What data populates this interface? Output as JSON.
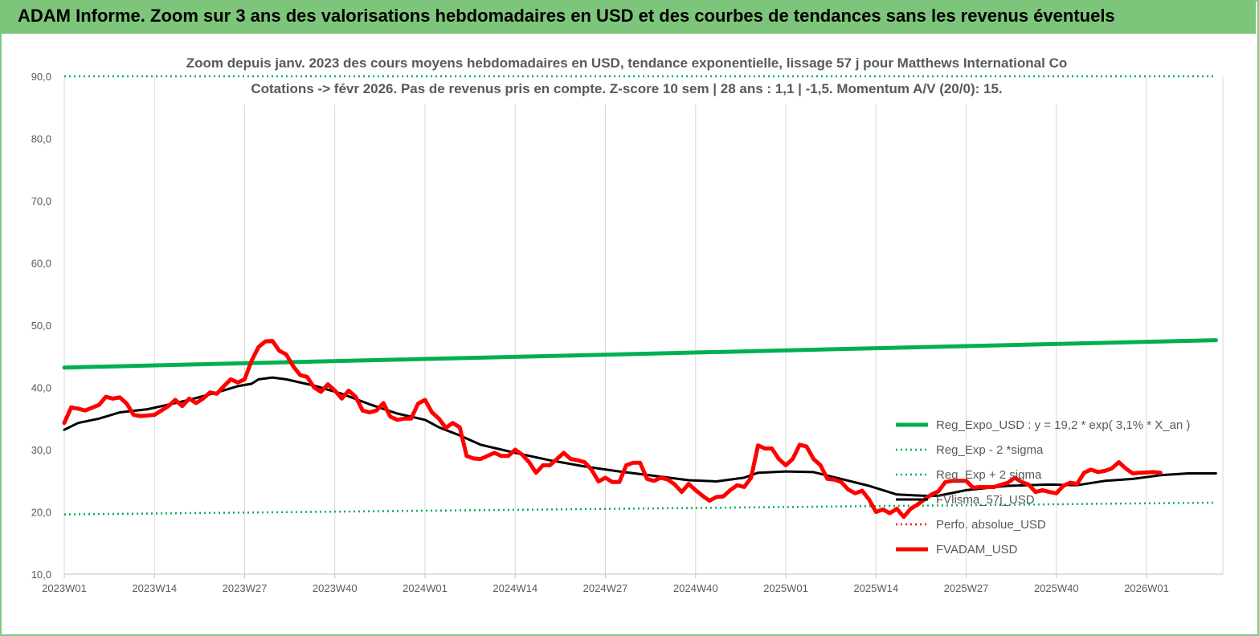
{
  "banner": {
    "title": "ADAM Informe. Zoom sur 3 ans des valorisations hebdomadaires en USD et des courbes de tendances sans les revenus éventuels"
  },
  "colors": {
    "banner_bg": "#7dc57a",
    "reg_expo": "#00b050",
    "sigma": "#00b050",
    "fvlisma": "#000000",
    "perfo": "#ff0000",
    "fvadam": "#ff0000"
  },
  "chart_data": {
    "type": "line",
    "title": "Zoom depuis janv. 2023 des cours moyens hebdomadaires en USD, tendance exponentielle, lissage 57 j pour Matthews International Co",
    "subtitle": "Cotations -> févr 2026.  Pas de revenus pris en compte. Z-score 10 sem  |  28 ans : 1,1  |  -1,5. Momentum A/V (20/0): 15.",
    "xlabel": "",
    "ylabel": "",
    "ylim": [
      10,
      90
    ],
    "yticks": [
      "10,0",
      "20,0",
      "30,0",
      "40,0",
      "50,0",
      "60,0",
      "70,0",
      "80,0",
      "90,0"
    ],
    "xticks": [
      "2023W01",
      "2023W14",
      "2023W27",
      "2023W40",
      "2024W01",
      "2024W14",
      "2024W27",
      "2024W40",
      "2025W01",
      "2025W14",
      "2025W27",
      "2025W40",
      "2026W01"
    ],
    "grid": "vertical",
    "legend_position": "right",
    "series": [
      {
        "name": "Reg_Expo_USD : y = 19,2 * exp( 3,1% *  X_an )",
        "style": "solid-thick",
        "color": "#00b050",
        "values": [
          [
            0,
            43.2
          ],
          [
            166,
            47.6
          ]
        ]
      },
      {
        "name": "Reg_Exp - 2 *sigma",
        "style": "dotted",
        "color": "#00b050",
        "values": [
          [
            0,
            19.6
          ],
          [
            166,
            21.5
          ]
        ]
      },
      {
        "name": "Reg_Exp + 2 sigma",
        "style": "dotted",
        "color": "#00b050",
        "values": [
          [
            0,
            90.0
          ],
          [
            166,
            90.0
          ]
        ]
      },
      {
        "name": "FVlisma_57j_USD",
        "style": "solid",
        "color": "#000000",
        "values": [
          [
            0,
            33.2
          ],
          [
            2,
            34.3
          ],
          [
            5,
            35.0
          ],
          [
            8,
            36.0
          ],
          [
            12,
            36.5
          ],
          [
            14,
            37.0
          ],
          [
            18,
            38.0
          ],
          [
            22,
            39.2
          ],
          [
            25,
            40.2
          ],
          [
            27,
            40.6
          ],
          [
            28,
            41.3
          ],
          [
            30,
            41.6
          ],
          [
            32,
            41.3
          ],
          [
            36,
            40.3
          ],
          [
            40,
            39.0
          ],
          [
            44,
            37.3
          ],
          [
            48,
            35.8
          ],
          [
            52,
            34.8
          ],
          [
            54,
            33.6
          ],
          [
            57,
            32.3
          ],
          [
            60,
            30.8
          ],
          [
            65,
            29.5
          ],
          [
            70,
            28.3
          ],
          [
            75,
            27.3
          ],
          [
            80,
            26.5
          ],
          [
            85,
            25.8
          ],
          [
            90,
            25.1
          ],
          [
            94,
            24.9
          ],
          [
            98,
            25.5
          ],
          [
            100,
            26.3
          ],
          [
            104,
            26.5
          ],
          [
            108,
            26.4
          ],
          [
            112,
            25.3
          ],
          [
            116,
            24.2
          ],
          [
            120,
            22.8
          ],
          [
            124,
            22.6
          ],
          [
            126,
            22.6
          ],
          [
            130,
            23.5
          ],
          [
            136,
            24.2
          ],
          [
            142,
            24.4
          ],
          [
            146,
            24.3
          ],
          [
            150,
            25.0
          ],
          [
            154,
            25.3
          ],
          [
            158,
            25.9
          ],
          [
            162,
            26.2
          ],
          [
            166,
            26.2
          ]
        ]
      },
      {
        "name": "Perfo. absolue_USD",
        "style": "dotted",
        "color": "#ff0000",
        "values": []
      },
      {
        "name": "FVADAM_USD",
        "style": "solid-thick",
        "color": "#ff0000",
        "values": [
          [
            0,
            34.3
          ],
          [
            1,
            36.8
          ],
          [
            2,
            36.6
          ],
          [
            3,
            36.3
          ],
          [
            5,
            37.2
          ],
          [
            6,
            38.5
          ],
          [
            7,
            38.2
          ],
          [
            8,
            38.4
          ],
          [
            9,
            37.4
          ],
          [
            10,
            35.6
          ],
          [
            11,
            35.4
          ],
          [
            13,
            35.6
          ],
          [
            15,
            37.0
          ],
          [
            16,
            38.0
          ],
          [
            17,
            37.0
          ],
          [
            18,
            38.2
          ],
          [
            19,
            37.5
          ],
          [
            20,
            38.2
          ],
          [
            21,
            39.2
          ],
          [
            22,
            39.0
          ],
          [
            23,
            40.2
          ],
          [
            24,
            41.3
          ],
          [
            25,
            40.8
          ],
          [
            26,
            41.3
          ],
          [
            27,
            44.3
          ],
          [
            28,
            46.5
          ],
          [
            29,
            47.4
          ],
          [
            30,
            47.5
          ],
          [
            31,
            45.9
          ],
          [
            32,
            45.3
          ],
          [
            33,
            43.4
          ],
          [
            34,
            42.0
          ],
          [
            35,
            41.7
          ],
          [
            36,
            40.0
          ],
          [
            37,
            39.3
          ],
          [
            38,
            40.5
          ],
          [
            39,
            39.5
          ],
          [
            40,
            38.2
          ],
          [
            41,
            39.5
          ],
          [
            42,
            38.5
          ],
          [
            43,
            36.3
          ],
          [
            44,
            36.0
          ],
          [
            45,
            36.3
          ],
          [
            46,
            37.5
          ],
          [
            47,
            35.3
          ],
          [
            48,
            34.8
          ],
          [
            49,
            35.0
          ],
          [
            50,
            35.0
          ],
          [
            51,
            37.4
          ],
          [
            52,
            38.0
          ],
          [
            53,
            36.0
          ],
          [
            54,
            35.0
          ],
          [
            55,
            33.5
          ],
          [
            56,
            34.3
          ],
          [
            57,
            33.6
          ],
          [
            58,
            29.0
          ],
          [
            59,
            28.6
          ],
          [
            60,
            28.5
          ],
          [
            62,
            29.5
          ],
          [
            63,
            29.0
          ],
          [
            64,
            29.0
          ],
          [
            65,
            30.0
          ],
          [
            66,
            29.2
          ],
          [
            67,
            28.0
          ],
          [
            68,
            26.3
          ],
          [
            69,
            27.5
          ],
          [
            70,
            27.5
          ],
          [
            71,
            28.5
          ],
          [
            72,
            29.5
          ],
          [
            73,
            28.5
          ],
          [
            74,
            28.3
          ],
          [
            75,
            28.0
          ],
          [
            76,
            26.8
          ],
          [
            77,
            24.9
          ],
          [
            78,
            25.5
          ],
          [
            79,
            24.8
          ],
          [
            80,
            24.8
          ],
          [
            81,
            27.5
          ],
          [
            82,
            27.9
          ],
          [
            83,
            27.9
          ],
          [
            84,
            25.3
          ],
          [
            85,
            25.0
          ],
          [
            86,
            25.5
          ],
          [
            87,
            25.2
          ],
          [
            88,
            24.4
          ],
          [
            89,
            23.2
          ],
          [
            90,
            24.5
          ],
          [
            91,
            23.5
          ],
          [
            92,
            22.6
          ],
          [
            93,
            21.8
          ],
          [
            94,
            22.4
          ],
          [
            95,
            22.5
          ],
          [
            96,
            23.5
          ],
          [
            97,
            24.3
          ],
          [
            98,
            24.0
          ],
          [
            99,
            25.5
          ],
          [
            100,
            30.7
          ],
          [
            101,
            30.2
          ],
          [
            102,
            30.2
          ],
          [
            103,
            28.5
          ],
          [
            104,
            27.5
          ],
          [
            105,
            28.5
          ],
          [
            106,
            30.8
          ],
          [
            107,
            30.5
          ],
          [
            108,
            28.5
          ],
          [
            109,
            27.5
          ],
          [
            110,
            25.3
          ],
          [
            111,
            25.2
          ],
          [
            112,
            24.8
          ],
          [
            113,
            23.6
          ],
          [
            114,
            23.0
          ],
          [
            115,
            23.4
          ],
          [
            116,
            22.0
          ],
          [
            117,
            20.0
          ],
          [
            118,
            20.4
          ],
          [
            119,
            19.8
          ],
          [
            120,
            20.5
          ],
          [
            121,
            19.2
          ],
          [
            122,
            20.5
          ],
          [
            123,
            21.2
          ],
          [
            124,
            22.0
          ],
          [
            125,
            22.8
          ],
          [
            126,
            23.3
          ],
          [
            127,
            24.8
          ],
          [
            128,
            25.0
          ],
          [
            130,
            25.0
          ],
          [
            131,
            23.9
          ],
          [
            132,
            24.0
          ],
          [
            134,
            24.0
          ],
          [
            136,
            24.7
          ],
          [
            137,
            25.5
          ],
          [
            138,
            24.8
          ],
          [
            139,
            24.4
          ],
          [
            140,
            23.2
          ],
          [
            141,
            23.5
          ],
          [
            142,
            23.2
          ],
          [
            143,
            23.0
          ],
          [
            144,
            24.2
          ],
          [
            145,
            24.7
          ],
          [
            146,
            24.5
          ],
          [
            147,
            26.3
          ],
          [
            148,
            26.8
          ],
          [
            149,
            26.4
          ],
          [
            150,
            26.6
          ],
          [
            151,
            27.0
          ],
          [
            152,
            28.0
          ],
          [
            153,
            27.0
          ],
          [
            154,
            26.2
          ],
          [
            155,
            26.3
          ],
          [
            157,
            26.4
          ],
          [
            158,
            26.3
          ]
        ]
      }
    ]
  }
}
